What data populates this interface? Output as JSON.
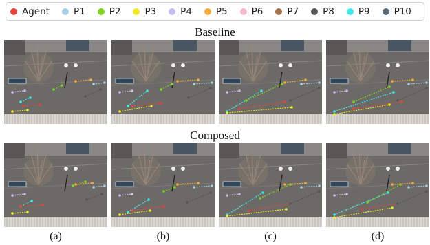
{
  "legend": {
    "items": [
      {
        "label": "Agent",
        "color": "#e8413c"
      },
      {
        "label": "P1",
        "color": "#a6cee3"
      },
      {
        "label": "P2",
        "color": "#7ed321"
      },
      {
        "label": "P3",
        "color": "#f2e924"
      },
      {
        "label": "P4",
        "color": "#c9bcef"
      },
      {
        "label": "P5",
        "color": "#f7a93a"
      },
      {
        "label": "P6",
        "color": "#f6b8cf"
      },
      {
        "label": "P7",
        "color": "#a0714a"
      },
      {
        "label": "P8",
        "color": "#555555"
      },
      {
        "label": "P9",
        "color": "#3ee9ea"
      },
      {
        "label": "P10",
        "color": "#566d7c"
      }
    ]
  },
  "rows": [
    {
      "title": "Baseline"
    },
    {
      "title": "Composed"
    }
  ],
  "captions": [
    "(a)",
    "(b)",
    "(c)",
    "(d)"
  ]
}
